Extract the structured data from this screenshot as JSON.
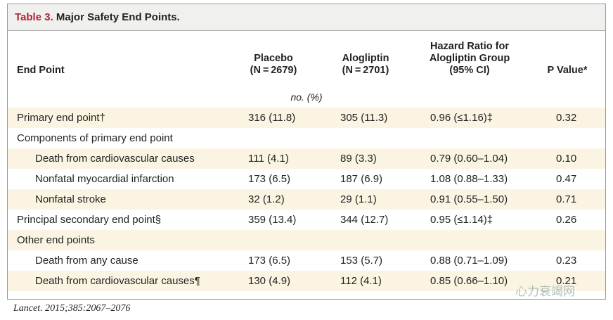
{
  "title": {
    "label": "Table 3.",
    "text": "Major Safety End Points."
  },
  "table": {
    "headers": [
      [
        "End Point"
      ],
      [
        "Placebo",
        "(N = 2679)"
      ],
      [
        "Alogliptin",
        "(N = 2701)"
      ],
      [
        "Hazard Ratio for",
        "Alogliptin Group",
        "(95% CI)"
      ],
      [
        "P Value*"
      ]
    ],
    "unit": "no. (%)",
    "rows": [
      [
        "Primary end point†",
        "316 (11.8)",
        "305 (11.3)",
        "0.96 (≤1.16)‡",
        "0.32"
      ],
      [
        "Components of primary end point"
      ],
      [
        "Death from cardiovascular causes",
        "111 (4.1)",
        "89 (3.3)",
        "0.79 (0.60–1.04)",
        "0.10"
      ],
      [
        "Nonfatal myocardial infarction",
        "173 (6.5)",
        "187 (6.9)",
        "1.08 (0.88–1.33)",
        "0.47"
      ],
      [
        "Nonfatal stroke",
        "32 (1.2)",
        "29 (1.1)",
        "0.91 (0.55–1.50)",
        "0.71"
      ],
      [
        "Principal secondary end point§",
        "359 (13.4)",
        "344 (12.7)",
        "0.95 (≤1.14)‡",
        "0.26"
      ],
      [
        "Other end points"
      ],
      [
        "Death from any cause",
        "173 (6.5)",
        "153 (5.7)",
        "0.88 (0.71–1.09)",
        "0.23"
      ],
      [
        "Death from cardiovascular causes¶",
        "130 (4.9)",
        "112 (4.1)",
        "0.85 (0.66–1.10)",
        "0.21"
      ]
    ]
  },
  "watermark": "心力衰竭网",
  "citation": "Lancet. 2015;385:2067–2076"
}
